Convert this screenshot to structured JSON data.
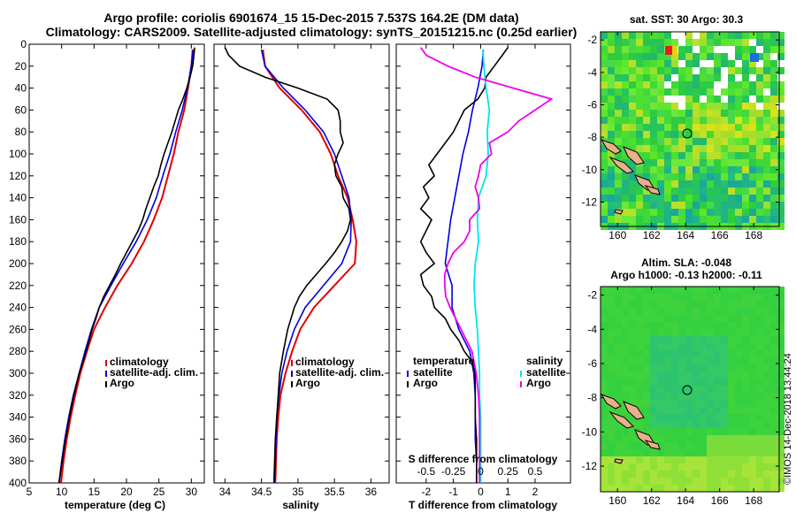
{
  "title": {
    "line1": "Argo profile: coriolis 6901674_15 15-Dec-2015 7.537S 164.2E (DM data)",
    "line2": "Climatology: CARS2009. Satellite-adjusted climatology: synTS_20151215.nc (0.25d earlier)"
  },
  "colors": {
    "climatology": "#e00000",
    "satellite": "#0000e0",
    "argo": "#000000",
    "sat_salinity": "#00e5ee",
    "clim_salinity_diff": "#ee00ee"
  },
  "chart_data": [
    {
      "type": "line",
      "name": "temperature",
      "xlabel": "temperature (deg C)",
      "ylabel": "",
      "xlim": [
        5,
        32
      ],
      "ylim": [
        400,
        0
      ],
      "x_ticks": [
        "5",
        "10",
        "15",
        "20",
        "25",
        "30"
      ],
      "y_ticks": [
        "0",
        "20",
        "40",
        "60",
        "80",
        "100",
        "120",
        "140",
        "160",
        "180",
        "200",
        "220",
        "240",
        "260",
        "280",
        "300",
        "320",
        "340",
        "360",
        "380",
        "400"
      ],
      "legend": [
        "climatology",
        "satellite-adj. clim.",
        "Argo"
      ],
      "series": [
        {
          "name": "climatology",
          "depth": [
            5,
            20,
            40,
            60,
            80,
            100,
            120,
            140,
            160,
            180,
            200,
            220,
            240,
            260,
            280,
            300,
            320,
            340,
            360,
            380,
            400
          ],
          "values": [
            30.2,
            30.0,
            29.5,
            28.9,
            28.0,
            27.3,
            26.4,
            25.5,
            24.2,
            22.7,
            20.8,
            18.6,
            16.7,
            15.0,
            13.9,
            12.9,
            12.1,
            11.4,
            10.8,
            10.3,
            9.9
          ]
        },
        {
          "name": "satellite-adj. clim.",
          "depth": [
            5,
            20,
            40,
            60,
            80,
            100,
            120,
            140,
            160,
            180,
            200,
            220,
            240,
            260,
            280,
            300,
            320,
            340,
            360,
            380,
            400
          ],
          "values": [
            30.3,
            30.0,
            29.4,
            28.6,
            27.6,
            26.7,
            25.6,
            24.6,
            23.2,
            21.5,
            19.5,
            17.6,
            15.8,
            14.6,
            13.6,
            12.7,
            11.8,
            11.1,
            10.5,
            10.0,
            9.6
          ]
        },
        {
          "name": "Argo",
          "depth": [
            3,
            10,
            20,
            30,
            40,
            50,
            60,
            70,
            80,
            90,
            100,
            110,
            120,
            130,
            140,
            150,
            160,
            170,
            180,
            190,
            200,
            210,
            220,
            230,
            240,
            250,
            260,
            280,
            300,
            320,
            340,
            360,
            380,
            400
          ],
          "values": [
            30.5,
            30.4,
            30.2,
            29.8,
            29.3,
            28.7,
            28.0,
            27.5,
            27.0,
            26.4,
            25.8,
            25.3,
            24.9,
            24.2,
            23.6,
            23.0,
            22.5,
            21.8,
            20.9,
            20.0,
            19.1,
            18.3,
            17.4,
            16.5,
            15.8,
            15.3,
            14.7,
            13.8,
            12.7,
            11.9,
            11.2,
            10.6,
            10.1,
            9.6
          ]
        }
      ]
    },
    {
      "type": "line",
      "name": "salinity",
      "xlabel": "salinity",
      "xlim": [
        33.85,
        36.25
      ],
      "ylim": [
        400,
        0
      ],
      "x_ticks": [
        "34",
        "34.5",
        "35",
        "35.5",
        "36"
      ],
      "legend": [
        "climatology",
        "satellite-adj. clim.",
        "Argo"
      ],
      "series": [
        {
          "name": "climatology",
          "depth": [
            5,
            20,
            40,
            60,
            80,
            100,
            120,
            140,
            160,
            180,
            200,
            220,
            240,
            260,
            280,
            300,
            320,
            340,
            360,
            380,
            400
          ],
          "values": [
            34.52,
            34.55,
            34.75,
            35.05,
            35.3,
            35.45,
            35.55,
            35.68,
            35.75,
            35.8,
            35.78,
            35.5,
            35.22,
            35.03,
            34.92,
            34.83,
            34.76,
            34.73,
            34.71,
            34.7,
            34.69
          ]
        },
        {
          "name": "satellite-adj. clim.",
          "depth": [
            5,
            20,
            40,
            60,
            80,
            100,
            120,
            140,
            160,
            180,
            200,
            220,
            240,
            260,
            280,
            300,
            320,
            340,
            360,
            380,
            400
          ],
          "values": [
            34.5,
            34.55,
            34.8,
            35.1,
            35.35,
            35.5,
            35.6,
            35.7,
            35.73,
            35.72,
            35.6,
            35.35,
            35.1,
            34.95,
            34.85,
            34.78,
            34.74,
            34.71,
            34.7,
            34.69,
            34.68
          ]
        },
        {
          "name": "Argo",
          "depth": [
            3,
            10,
            20,
            30,
            40,
            50,
            60,
            70,
            80,
            90,
            100,
            110,
            120,
            130,
            140,
            150,
            160,
            170,
            180,
            190,
            200,
            210,
            220,
            230,
            240,
            260,
            280,
            300,
            320,
            340,
            360,
            380,
            400
          ],
          "values": [
            34.0,
            34.05,
            34.2,
            34.55,
            35.0,
            35.4,
            35.55,
            35.58,
            35.58,
            35.62,
            35.55,
            35.5,
            35.52,
            35.6,
            35.62,
            35.7,
            35.72,
            35.68,
            35.6,
            35.5,
            35.38,
            35.25,
            35.12,
            35.02,
            34.95,
            34.86,
            34.8,
            34.75,
            34.73,
            34.71,
            34.69,
            34.68,
            34.67
          ]
        }
      ]
    },
    {
      "type": "line",
      "name": "difference",
      "xlabel": "T difference from climatology",
      "xlabel_top": "S difference from climatology",
      "xlim": [
        -3.1,
        3.3
      ],
      "ylim": [
        400,
        0
      ],
      "x_ticks": [
        "-2",
        "-1",
        "0",
        "1",
        "2"
      ],
      "x_ticks_top": [
        "-0.5",
        "-0.25",
        "0",
        "0.25",
        "0.5"
      ],
      "legend_left_title": "temperature",
      "legend_left": [
        "satellite",
        "Argo"
      ],
      "legend_right_title": "salinity",
      "legend_right": [
        "satellite",
        "Argo"
      ],
      "series": [
        {
          "name": "T satellite",
          "depth": [
            5,
            20,
            40,
            60,
            80,
            100,
            120,
            140,
            160,
            180,
            200,
            220,
            240,
            260,
            280,
            300,
            320,
            340,
            360,
            380,
            400
          ],
          "values": [
            0.1,
            0.05,
            -0.1,
            -0.3,
            -0.45,
            -0.65,
            -0.8,
            -0.95,
            -1.1,
            -1.2,
            -1.3,
            -1.05,
            -1.05,
            -0.8,
            -0.4,
            -0.25,
            -0.2,
            -0.2,
            -0.2,
            -0.15,
            -0.15
          ]
        },
        {
          "name": "T Argo",
          "depth": [
            3,
            10,
            20,
            30,
            40,
            50,
            60,
            70,
            80,
            90,
            100,
            110,
            120,
            130,
            140,
            150,
            160,
            170,
            180,
            190,
            200,
            210,
            220,
            230,
            240,
            250,
            260,
            270,
            280,
            290,
            300,
            320,
            340,
            360,
            380,
            400
          ],
          "values": [
            1.0,
            0.8,
            0.5,
            0.2,
            0.15,
            -0.1,
            -0.6,
            -0.8,
            -1.0,
            -1.3,
            -1.6,
            -1.9,
            -1.7,
            -2.1,
            -1.9,
            -2.2,
            -1.8,
            -2.0,
            -2.2,
            -2.0,
            -1.7,
            -2.2,
            -2.1,
            -1.8,
            -1.7,
            -1.3,
            -1.1,
            -0.8,
            -0.6,
            -0.3,
            -0.2,
            -0.2,
            -0.2,
            -0.15,
            -0.15,
            -0.15
          ]
        },
        {
          "name": "S satellite",
          "depth": [
            5,
            20,
            40,
            60,
            80,
            100,
            120,
            140,
            160,
            180,
            200,
            220,
            240,
            260,
            280,
            300,
            320,
            340,
            360,
            380,
            400
          ],
          "values": [
            0.02,
            0.03,
            0.05,
            0.08,
            0.06,
            0.07,
            0.05,
            -0.02,
            -0.03,
            -0.02,
            -0.05,
            -0.06,
            -0.05,
            -0.03,
            -0.02,
            -0.01,
            -0.01,
            0.0,
            0.0,
            0.0,
            0.0
          ]
        },
        {
          "name": "S Argo",
          "depth": [
            3,
            10,
            20,
            30,
            40,
            50,
            60,
            70,
            80,
            90,
            100,
            110,
            120,
            130,
            140,
            150,
            160,
            170,
            180,
            190,
            200,
            210,
            220,
            230,
            240,
            260,
            280,
            300,
            320,
            340,
            360,
            380,
            400
          ],
          "values": [
            -0.55,
            -0.5,
            -0.3,
            -0.05,
            0.3,
            0.65,
            0.5,
            0.35,
            0.25,
            0.08,
            0.1,
            0.0,
            -0.02,
            -0.05,
            -0.02,
            -0.01,
            -0.1,
            -0.1,
            -0.15,
            -0.25,
            -0.3,
            -0.33,
            -0.33,
            -0.32,
            -0.28,
            -0.18,
            -0.08,
            -0.04,
            -0.02,
            -0.01,
            -0.01,
            -0.01,
            -0.01
          ]
        }
      ]
    },
    {
      "type": "heatmap",
      "name": "sst_map",
      "title": "sat. SST: 30 Argo: 30.3",
      "x_ticks": [
        "160",
        "162",
        "164",
        "166",
        "168"
      ],
      "y_ticks": [
        "-2",
        "-4",
        "-6",
        "-8",
        "-10",
        "-12"
      ],
      "xlim": [
        159,
        169.5
      ],
      "ylim": [
        -13.5,
        -1.5
      ],
      "argo_position": [
        164.2,
        -7.54
      ]
    },
    {
      "type": "heatmap",
      "name": "sla_map",
      "title_line1": "Altim. SLA: -0.048",
      "title_line2": "Argo h1000: -0.13 h2000: -0.11",
      "x_ticks": [
        "160",
        "162",
        "164",
        "166",
        "168"
      ],
      "y_ticks": [
        "-2",
        "-4",
        "-6",
        "-8",
        "-10",
        "-12"
      ],
      "xlim": [
        159,
        169.5
      ],
      "ylim": [
        -13.5,
        -1.5
      ],
      "argo_position": [
        164.2,
        -7.54
      ]
    }
  ],
  "stamp": "©IMOS 14-Dec-2018 13:44:24"
}
